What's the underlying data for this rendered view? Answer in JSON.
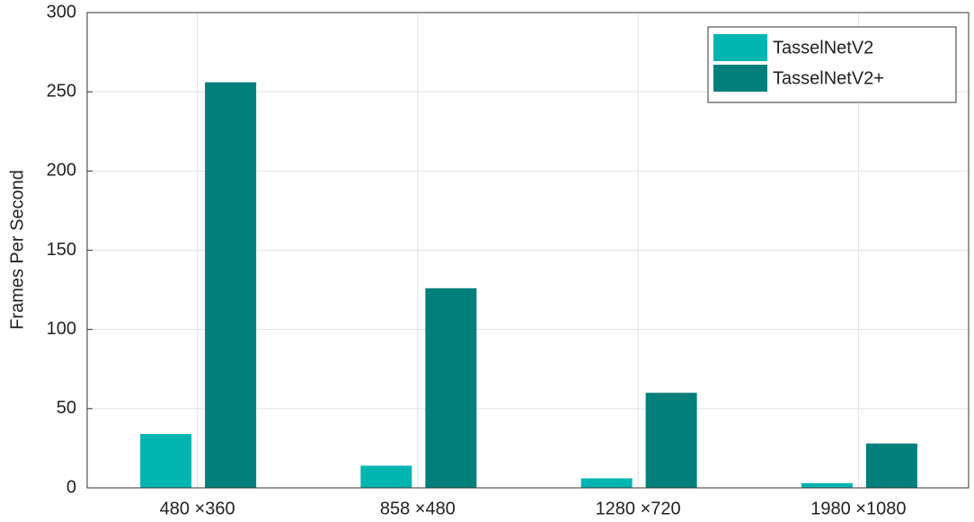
{
  "chart_data": {
    "type": "bar",
    "y_label": "Frames Per Second",
    "categories": [
      "480 ×360",
      "858 ×480",
      "1280 ×720",
      "1980 ×1080"
    ],
    "series": [
      {
        "name": "TasselNetV2",
        "color": "#00b5b0",
        "values": [
          34,
          14,
          6,
          3
        ]
      },
      {
        "name": "TasselNetV2+",
        "color": "#007f7b",
        "values": [
          256,
          126,
          60,
          28
        ]
      }
    ],
    "ylim": [
      0,
      300
    ],
    "yticks": [
      0,
      50,
      100,
      150,
      200,
      250,
      300
    ],
    "grid": true,
    "legend": "upper-right"
  }
}
